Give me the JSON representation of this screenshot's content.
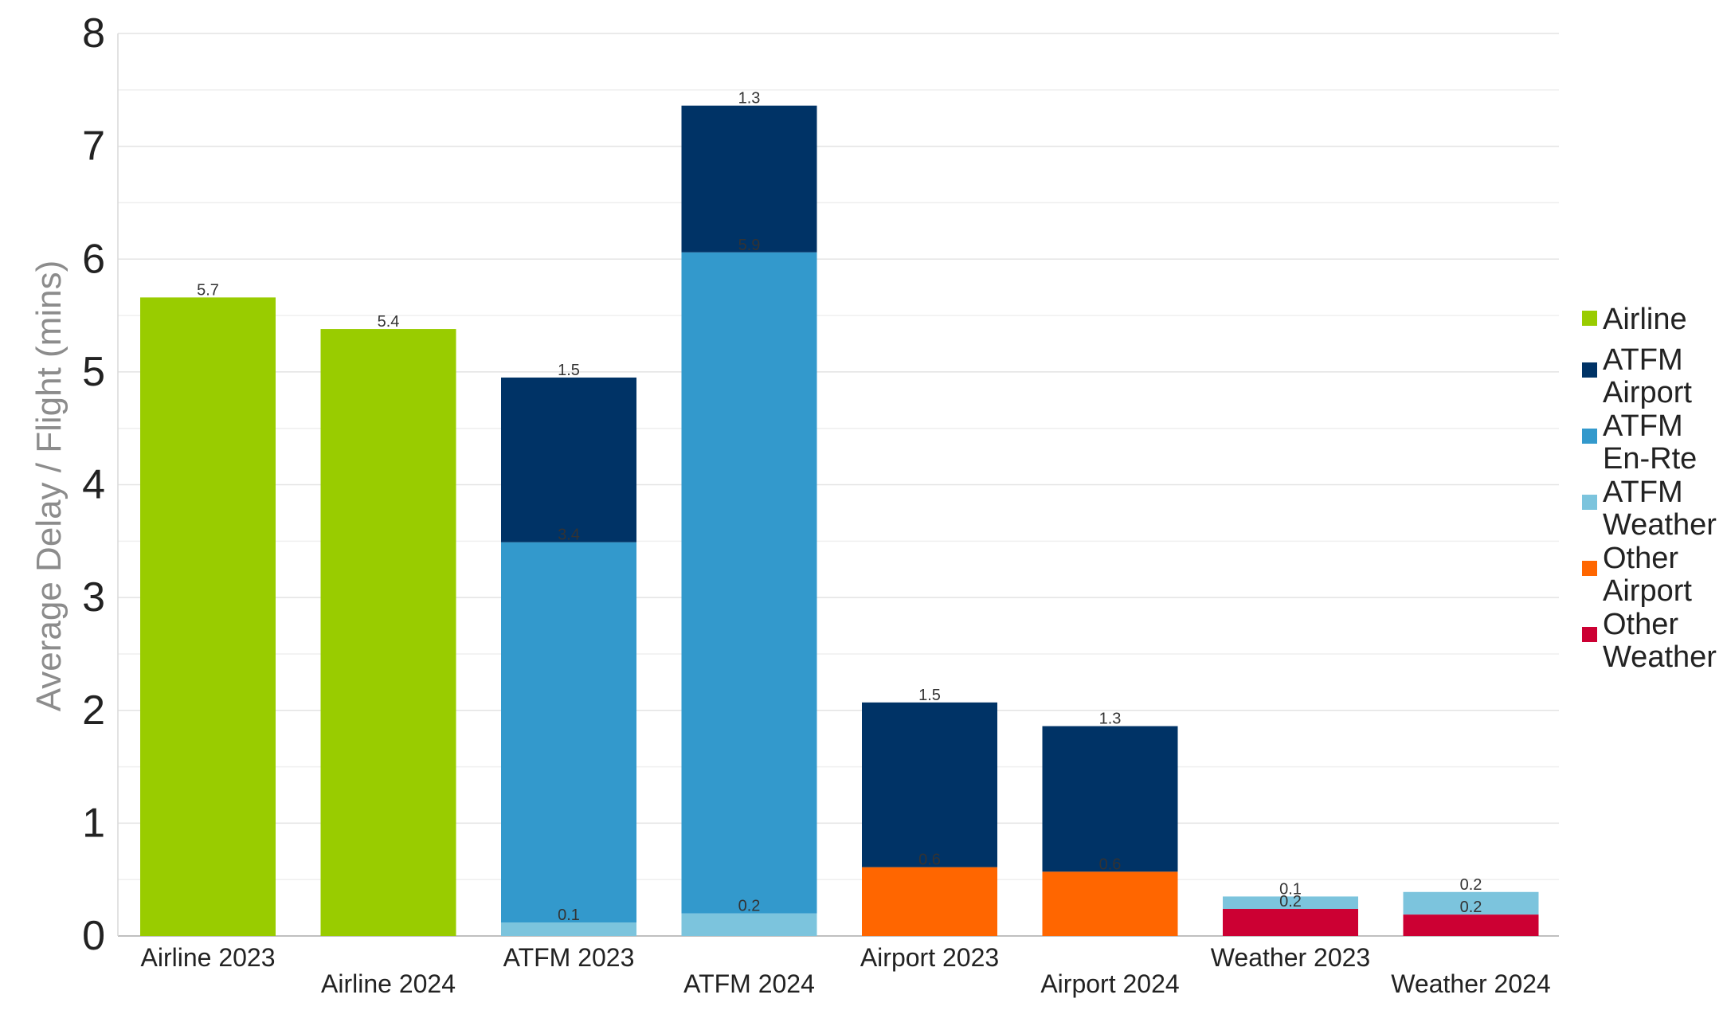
{
  "chart_data": {
    "type": "bar",
    "stacked": true,
    "title": "",
    "xlabel": "",
    "ylabel": "Average Delay / Flight (mins)",
    "ylim": [
      0,
      8
    ],
    "yticks": [
      "0",
      "1",
      "2",
      "3",
      "4",
      "5",
      "6",
      "7",
      "8"
    ],
    "grid": true,
    "legend_position": "right",
    "categories": [
      "Airline 2023",
      "Airline 2024",
      "ATFM 2023",
      "ATFM 2024",
      "Airport 2023",
      "Airport 2024",
      "Weather 2023",
      "Weather 2024"
    ],
    "series": [
      {
        "name": "Airline",
        "color": "#99cc00",
        "values": [
          5.66,
          5.38,
          null,
          null,
          null,
          null,
          null,
          null
        ],
        "labels": [
          "5.7",
          "5.4",
          "",
          "",
          "",
          "",
          "",
          ""
        ]
      },
      {
        "name": "Other Airport",
        "color": "#ff6600",
        "values": [
          null,
          null,
          null,
          null,
          0.61,
          0.57,
          null,
          null
        ],
        "labels": [
          "",
          "",
          "",
          "",
          "0.6",
          "0.6",
          "",
          ""
        ]
      },
      {
        "name": "Other Weather",
        "color": "#cc0033",
        "values": [
          null,
          null,
          null,
          null,
          null,
          null,
          0.24,
          0.19
        ],
        "labels": [
          "",
          "",
          "",
          "",
          "",
          "",
          "0.2",
          "0.2"
        ]
      },
      {
        "name": "ATFM Weather",
        "color": "#7cc4dd",
        "values": [
          null,
          null,
          0.12,
          0.2,
          null,
          null,
          0.11,
          0.2
        ],
        "labels": [
          "",
          "",
          "0.1",
          "0.2",
          "",
          "",
          "0.1",
          "0.2"
        ]
      },
      {
        "name": "ATFM En-Rte",
        "color": "#3399cc",
        "values": [
          null,
          null,
          3.37,
          5.86,
          null,
          null,
          null,
          null
        ],
        "labels": [
          "",
          "",
          "3.4",
          "5.9",
          "",
          "",
          "",
          ""
        ]
      },
      {
        "name": "ATFM Airport",
        "color": "#003366",
        "values": [
          null,
          null,
          1.46,
          1.3,
          1.46,
          1.29,
          null,
          null
        ],
        "labels": [
          "",
          "",
          "1.5",
          "1.3",
          "1.5",
          "1.3",
          "",
          ""
        ]
      }
    ],
    "legend": [
      {
        "lines": [
          "Airline"
        ],
        "color": "#99cc00"
      },
      {
        "lines": [
          "ATFM",
          "Airport"
        ],
        "color": "#003366"
      },
      {
        "lines": [
          "ATFM",
          "En-Rte"
        ],
        "color": "#3399cc"
      },
      {
        "lines": [
          "ATFM",
          "Weather"
        ],
        "color": "#7cc4dd"
      },
      {
        "lines": [
          "Other",
          "Airport"
        ],
        "color": "#ff6600"
      },
      {
        "lines": [
          "Other",
          "Weather"
        ],
        "color": "#cc0033"
      }
    ]
  }
}
